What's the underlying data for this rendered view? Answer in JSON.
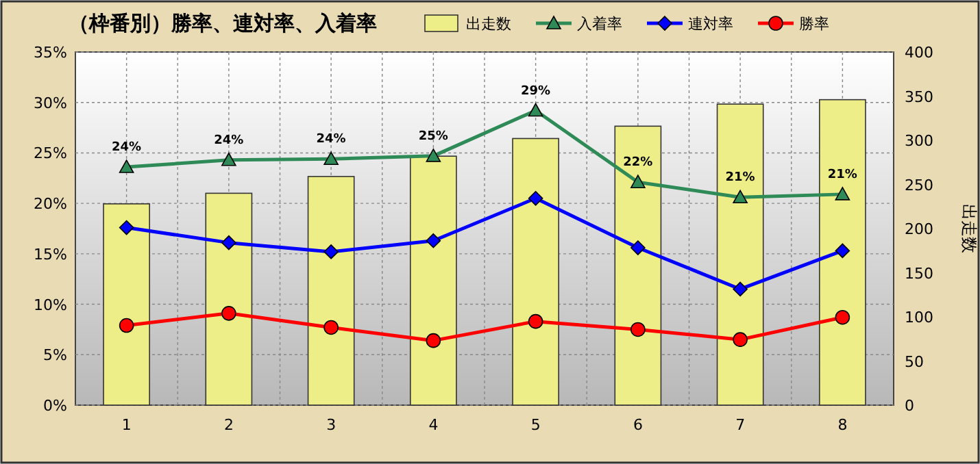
{
  "chart_data": {
    "type": "line",
    "title": "（枠番別）勝率、連対率、入着率",
    "y2label": "出走数",
    "categories": [
      "1",
      "2",
      "3",
      "4",
      "5",
      "6",
      "7",
      "8"
    ],
    "series": [
      {
        "name": "出走数",
        "type": "bar",
        "axis": "y2",
        "color": "#eeee88",
        "values": [
          228,
          240,
          259,
          282,
          302,
          316,
          341,
          346
        ]
      },
      {
        "name": "入着率",
        "color": "#2e8b57",
        "marker": "triangle",
        "values": [
          23.6,
          24.3,
          24.4,
          24.7,
          29.2,
          22.1,
          20.6,
          20.9
        ],
        "value_labels": [
          "24%",
          "24%",
          "24%",
          "25%",
          "29%",
          "22%",
          "21%",
          "21%"
        ]
      },
      {
        "name": "連対率",
        "color": "#0000ff",
        "marker": "diamond",
        "values": [
          17.6,
          16.1,
          15.2,
          16.3,
          20.5,
          15.6,
          11.5,
          15.3
        ]
      },
      {
        "name": "勝率",
        "color": "#ff0000",
        "marker": "circle",
        "values": [
          7.9,
          9.1,
          7.7,
          6.4,
          8.3,
          7.5,
          6.5,
          8.7
        ]
      }
    ],
    "ylim": [
      0,
      35
    ],
    "yticks": [
      {
        "value": 0,
        "label": "0%"
      },
      {
        "value": 5,
        "label": "5%"
      },
      {
        "value": 10,
        "label": "10%"
      },
      {
        "value": 15,
        "label": "15%"
      },
      {
        "value": 20,
        "label": "20%"
      },
      {
        "value": 25,
        "label": "25%"
      },
      {
        "value": 30,
        "label": "30%"
      },
      {
        "value": 35,
        "label": "35%"
      }
    ],
    "y2lim": [
      0,
      400
    ],
    "y2ticks": [
      0,
      50,
      100,
      150,
      200,
      250,
      300,
      350,
      400
    ],
    "grid": true,
    "legend": "top right"
  }
}
